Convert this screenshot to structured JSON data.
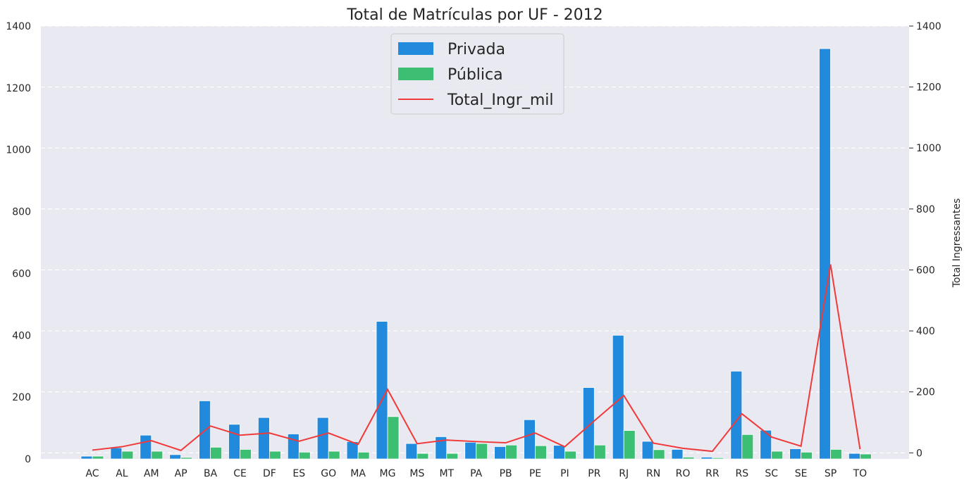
{
  "chart_data": {
    "type": "bar",
    "title": "Total de Matrículas por UF - 2012",
    "xlabel": "",
    "ylabel": "",
    "y2label": "Total Ingressantes",
    "categories": [
      "AC",
      "AL",
      "AM",
      "AP",
      "BA",
      "CE",
      "DF",
      "ES",
      "GO",
      "MA",
      "MG",
      "MS",
      "MT",
      "PA",
      "PB",
      "PE",
      "PI",
      "PR",
      "RJ",
      "RN",
      "RO",
      "RR",
      "RS",
      "SC",
      "SE",
      "SP",
      "TO"
    ],
    "series": [
      {
        "name": "Privada",
        "type": "bar",
        "axis": "left",
        "color": "#228add",
        "values": [
          9,
          36,
          77,
          14,
          188,
          112,
          134,
          81,
          134,
          56,
          445,
          50,
          72,
          54,
          40,
          127,
          44,
          231,
          400,
          57,
          31,
          6,
          284,
          93,
          33,
          1327,
          18
        ]
      },
      {
        "name": "Pública",
        "type": "bar",
        "axis": "left",
        "color": "#3cbf72",
        "values": [
          9,
          25,
          25,
          5,
          38,
          31,
          25,
          22,
          25,
          22,
          137,
          18,
          18,
          50,
          45,
          43,
          25,
          45,
          92,
          30,
          6,
          4,
          79,
          25,
          22,
          31,
          16
        ]
      },
      {
        "name": "Total_Ingr_mil",
        "type": "line",
        "axis": "right",
        "color": "#f03a3a",
        "values": [
          9,
          20,
          40,
          8,
          88,
          58,
          65,
          38,
          65,
          28,
          208,
          30,
          42,
          37,
          33,
          65,
          20,
          105,
          188,
          32,
          15,
          5,
          128,
          52,
          22,
          618,
          12
        ]
      }
    ],
    "ylim": [
      0,
      1400
    ],
    "y2lim": [
      -20,
      1400
    ],
    "yticks": [
      "0",
      "200",
      "400",
      "600",
      "800",
      "1000",
      "1200",
      "1400"
    ],
    "y2ticks": [
      "0",
      "200",
      "400",
      "600",
      "800",
      "1000",
      "1200",
      "1400"
    ],
    "grid": true,
    "legend_position": "top-center"
  },
  "colors": {
    "background": "#e9e9f1",
    "grid": "#ffffff",
    "text": "#262626"
  }
}
